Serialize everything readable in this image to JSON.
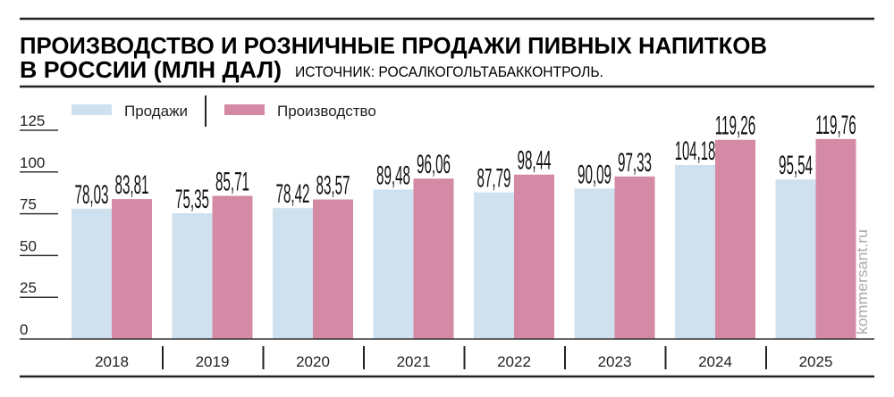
{
  "chart_data": {
    "type": "bar",
    "title": "ПРОИЗВОДСТВО И РОЗНИЧНЫЕ ПРОДАЖИ ПИВНЫХ НАПИТКОВ",
    "title_line2": "В РОССИИ (МЛН ДАЛ)",
    "source": "ИСТОЧНИК: РОСАЛКОГОЛЬТАБАККОНТРОЛЬ.",
    "categories": [
      "2018",
      "2019",
      "2020",
      "2021",
      "2022",
      "2023",
      "2024",
      "2025"
    ],
    "series": [
      {
        "name": "Продажи",
        "color": "#cfe1ef",
        "values": [
          78.03,
          75.35,
          78.42,
          89.48,
          87.79,
          90.09,
          104.18,
          95.54
        ],
        "labels": [
          "78,03",
          "75,35",
          "78,42",
          "89,48",
          "87,79",
          "90,09",
          "104,18",
          "95,54"
        ]
      },
      {
        "name": "Производство",
        "color": "#d48aa5",
        "values": [
          83.81,
          85.71,
          83.57,
          96.06,
          98.44,
          97.33,
          119.26,
          119.76
        ],
        "labels": [
          "83,81",
          "85,71",
          "83,57",
          "96,06",
          "98,44",
          "97,33",
          "119,26",
          "119,76"
        ]
      }
    ],
    "yticks": [
      "0",
      "25",
      "50",
      "75",
      "100",
      "125"
    ],
    "ylim": [
      0,
      125
    ],
    "legend_position": "top",
    "grid": false
  },
  "watermark": "kommersant.ru"
}
